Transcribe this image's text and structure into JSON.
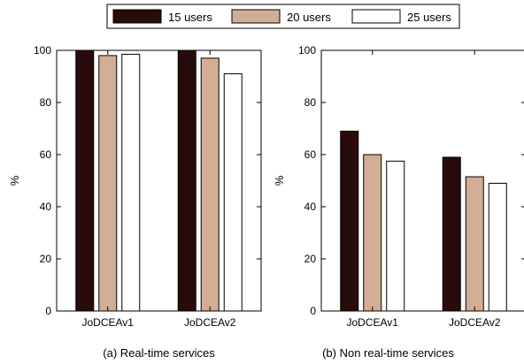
{
  "legend": {
    "entries": [
      "15 users",
      "20 users",
      "25 users"
    ],
    "colors": [
      "#280c0c",
      "#d2ae94",
      "#ffffff"
    ]
  },
  "chart_data": [
    {
      "type": "bar",
      "caption": "(a) Real-time services",
      "categories": [
        "JoDCEAv1",
        "JoDCEAv2"
      ],
      "series": [
        {
          "name": "15 users",
          "values": [
            100,
            100
          ]
        },
        {
          "name": "20 users",
          "values": [
            98,
            97
          ]
        },
        {
          "name": "25 users",
          "values": [
            98.5,
            91
          ]
        }
      ],
      "ylabel": "%",
      "ylim": [
        0,
        100
      ],
      "yticks": [
        0,
        20,
        40,
        60,
        80,
        100
      ],
      "grid": false,
      "legend_position": "top"
    },
    {
      "type": "bar",
      "caption": "(b) Non real-time services",
      "categories": [
        "JoDCEAv1",
        "JoDCEAv2"
      ],
      "series": [
        {
          "name": "15 users",
          "values": [
            69,
            59
          ]
        },
        {
          "name": "20 users",
          "values": [
            60,
            51.5
          ]
        },
        {
          "name": "25 users",
          "values": [
            57.5,
            49
          ]
        }
      ],
      "ylabel": "%",
      "ylim": [
        0,
        100
      ],
      "yticks": [
        0,
        20,
        40,
        60,
        80,
        100
      ],
      "grid": false,
      "legend_position": "top"
    }
  ]
}
